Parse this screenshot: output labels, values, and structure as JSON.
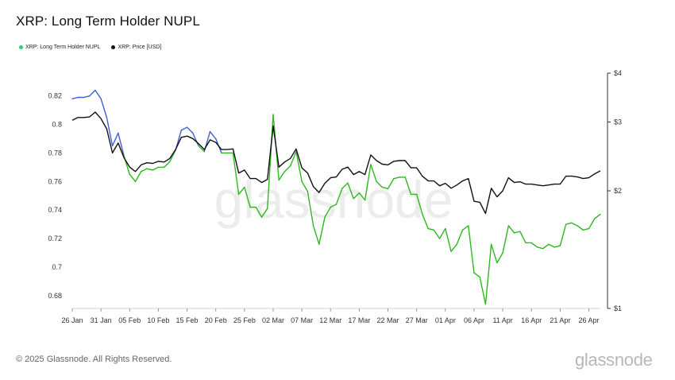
{
  "title": "XRP: Long Term Holder NUPL",
  "legend": [
    {
      "label": "XRP: Long Term Holder NUPL",
      "color": "#2ecc71"
    },
    {
      "label": "XRP: Price [USD]",
      "color": "#111111"
    }
  ],
  "footer": "© 2025 Glassnode. All Rights Reserved.",
  "brand": "glassnode",
  "watermark": "glassnode",
  "colors": {
    "nupl_up": "#3f5fd6",
    "nupl_down": "#2db81e",
    "price": "#111111"
  },
  "chart_data": {
    "type": "line",
    "title": "XRP: Long Term Holder NUPL",
    "x_ticks": [
      "26 Jan",
      "31 Jan",
      "05 Feb",
      "10 Feb",
      "15 Feb",
      "20 Feb",
      "25 Feb",
      "02 Mar",
      "07 Mar",
      "12 Mar",
      "17 Mar",
      "22 Mar",
      "27 Mar",
      "01 Apr",
      "06 Apr",
      "11 Apr",
      "16 Apr",
      "21 Apr",
      "26 Apr"
    ],
    "y_left": {
      "ticks": [
        "0.82",
        "0.8",
        "0.78",
        "0.76",
        "0.74",
        "0.72",
        "0.7",
        "0.68"
      ],
      "values": [
        0.82,
        0.8,
        0.78,
        0.76,
        0.74,
        0.72,
        0.7,
        0.68
      ],
      "range": [
        0.671,
        0.836
      ]
    },
    "y_right": {
      "ticks": [
        "$4",
        "$3",
        "$2",
        "$1"
      ],
      "values": [
        4,
        3,
        2,
        1
      ],
      "scale": "log",
      "range": [
        1,
        4
      ]
    },
    "series": [
      {
        "name": "XRP: Long Term Holder NUPL",
        "axis": "left",
        "start_date": "2025-01-26",
        "values": [
          0.818,
          0.819,
          0.819,
          0.82,
          0.824,
          0.818,
          0.805,
          0.785,
          0.794,
          0.778,
          0.765,
          0.76,
          0.767,
          0.769,
          0.768,
          0.77,
          0.77,
          0.774,
          0.782,
          0.796,
          0.798,
          0.794,
          0.785,
          0.781,
          0.795,
          0.79,
          0.78,
          0.78,
          0.78,
          0.751,
          0.756,
          0.742,
          0.742,
          0.735,
          0.741,
          0.807,
          0.761,
          0.767,
          0.771,
          0.781,
          0.76,
          0.753,
          0.729,
          0.716,
          0.735,
          0.742,
          0.744,
          0.755,
          0.759,
          0.748,
          0.752,
          0.747,
          0.772,
          0.76,
          0.756,
          0.755,
          0.762,
          0.763,
          0.763,
          0.751,
          0.751,
          0.737,
          0.727,
          0.726,
          0.72,
          0.727,
          0.711,
          0.716,
          0.726,
          0.729,
          0.696,
          0.693,
          0.674,
          0.716,
          0.703,
          0.71,
          0.729,
          0.724,
          0.725,
          0.717,
          0.717,
          0.714,
          0.713,
          0.716,
          0.714,
          0.715,
          0.73,
          0.731,
          0.729,
          0.726,
          0.727,
          0.734,
          0.737
        ],
        "colors_note": "blue segments when above price line, green when below"
      },
      {
        "name": "XRP: Price [USD]",
        "axis": "right",
        "start_date": "2025-01-26",
        "values": [
          3.03,
          3.08,
          3.08,
          3.09,
          3.18,
          3.06,
          2.88,
          2.5,
          2.65,
          2.43,
          2.3,
          2.24,
          2.33,
          2.36,
          2.35,
          2.38,
          2.37,
          2.42,
          2.55,
          2.74,
          2.76,
          2.72,
          2.64,
          2.55,
          2.7,
          2.66,
          2.55,
          2.55,
          2.56,
          2.22,
          2.26,
          2.15,
          2.15,
          2.1,
          2.14,
          2.93,
          2.3,
          2.37,
          2.42,
          2.56,
          2.29,
          2.22,
          2.05,
          1.98,
          2.09,
          2.16,
          2.17,
          2.27,
          2.3,
          2.2,
          2.24,
          2.2,
          2.47,
          2.39,
          2.34,
          2.33,
          2.38,
          2.39,
          2.39,
          2.29,
          2.29,
          2.18,
          2.12,
          2.12,
          2.06,
          2.09,
          2.03,
          2.07,
          2.12,
          2.15,
          1.88,
          1.87,
          1.75,
          2.03,
          1.93,
          2.0,
          2.16,
          2.1,
          2.11,
          2.08,
          2.08,
          2.07,
          2.06,
          2.07,
          2.08,
          2.08,
          2.18,
          2.18,
          2.17,
          2.15,
          2.16,
          2.21,
          2.25
        ]
      }
    ]
  }
}
